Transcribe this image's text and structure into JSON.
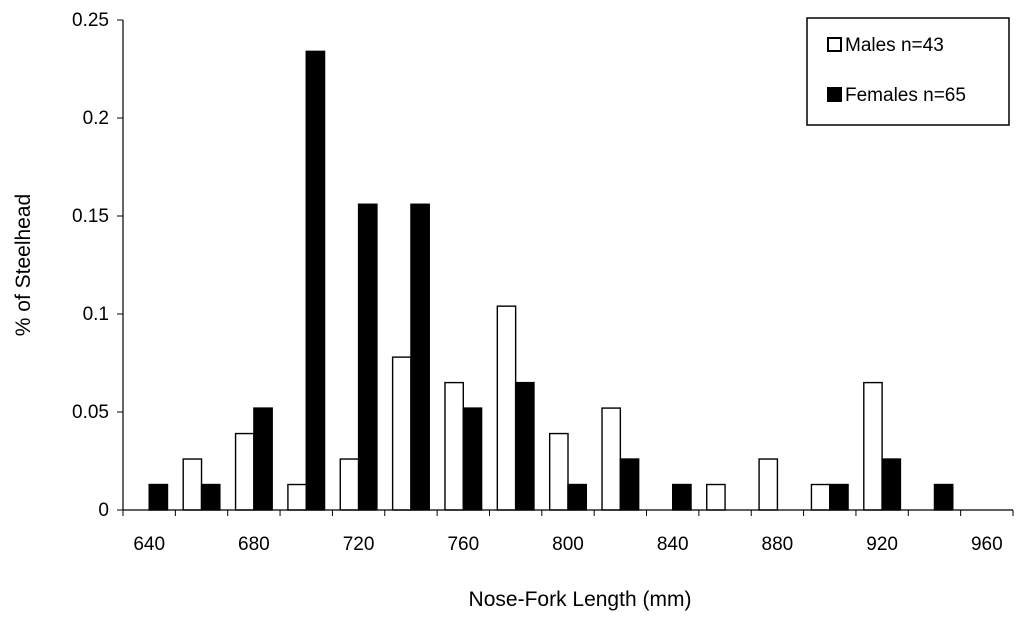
{
  "chart_data": {
    "type": "bar",
    "xlabel": "Nose-Fork Length (mm)",
    "ylabel": "% of Steelhead",
    "ylim": [
      0,
      0.25
    ],
    "yticks": [
      "0",
      "0.05",
      "0.1",
      "0.15",
      "0.2",
      "0.25"
    ],
    "xlim": [
      630,
      970
    ],
    "xticks": [
      "640",
      "680",
      "720",
      "760",
      "800",
      "840",
      "880",
      "920",
      "960"
    ],
    "bin_width": 20,
    "legend_position": "top-right",
    "grid": false,
    "series": [
      {
        "name": "Males n=43",
        "color": "#ffffff",
        "x": [
          640,
          660,
          680,
          700,
          720,
          740,
          760,
          780,
          800,
          820,
          840,
          860,
          880,
          900,
          920,
          940
        ],
        "values": [
          0,
          0.026,
          0.039,
          0.013,
          0.026,
          0.078,
          0.065,
          0.104,
          0.039,
          0.052,
          0,
          0.013,
          0.026,
          0.013,
          0.065,
          0
        ]
      },
      {
        "name": "Females n=65",
        "color": "#000000",
        "x": [
          640,
          660,
          680,
          700,
          720,
          740,
          760,
          780,
          800,
          820,
          840,
          860,
          880,
          900,
          920,
          940
        ],
        "values": [
          0.013,
          0.013,
          0.052,
          0.234,
          0.156,
          0.156,
          0.052,
          0.065,
          0.013,
          0.026,
          0.013,
          0,
          0,
          0.013,
          0.026,
          0.013
        ]
      }
    ]
  }
}
